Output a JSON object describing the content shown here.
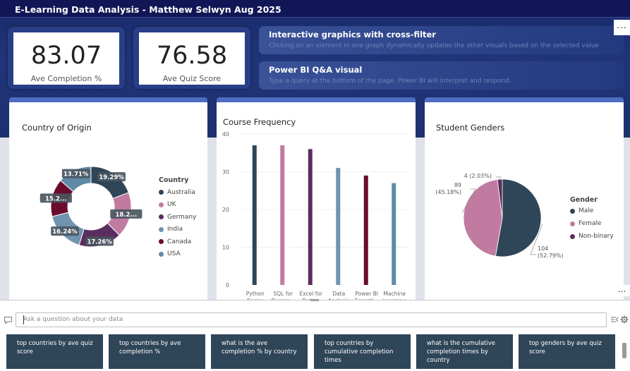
{
  "report_title": "E-Learning Data Analysis - Matthew Selwyn Aug 2025",
  "kpis": [
    {
      "value": "83.07",
      "label": "Ave Completion %"
    },
    {
      "value": "76.58",
      "label": "Ave Quiz Score"
    }
  ],
  "info_pills": [
    {
      "title": "Interactive graphics with cross-filter",
      "subtitle": "Clicking on an element in one graph dynamically updates the other visuals based on the selected value"
    },
    {
      "title": "Power BI Q&A visual",
      "subtitle": "Type a query at the  bottom of the page. Power BI will interpret and respond."
    }
  ],
  "more_options": "...",
  "colors": {
    "navy": "#2f4558",
    "pink": "#c27ba0",
    "purple": "#5b2d5e",
    "blue_grey": "#6f94b0",
    "maroon": "#6b0c2e",
    "steel": "#5f8aa8",
    "header": "#111656",
    "accent": "#4e6cc0"
  },
  "chart_data": [
    {
      "type": "pie",
      "variant": "donut",
      "title": "Country of Origin",
      "legend_title": "Country",
      "legend_position": "right",
      "categories": [
        "Australia",
        "UK",
        "Germany",
        "India",
        "Canada",
        "USA"
      ],
      "values": [
        19.29,
        18.2,
        17.26,
        16.24,
        15.2,
        13.71
      ],
      "data_labels": [
        "19.29%",
        "18.2...",
        "17.26%",
        "16.24%",
        "15.2...",
        "13.71%"
      ],
      "colors": [
        "#2f4558",
        "#c27ba0",
        "#5b2d5e",
        "#6f94b0",
        "#6b0c2e",
        "#5f8aa8"
      ]
    },
    {
      "type": "bar",
      "title": "Course Frequency",
      "categories": [
        "Python Basics",
        "SQL for Beginn...",
        "Excel for Data...",
        "Data Analysis",
        "Power BI Essenti...",
        "Machine Learning"
      ],
      "category_lines": [
        [
          "Python",
          "Basics"
        ],
        [
          "SQL for",
          "Beginn..."
        ],
        [
          "Excel for",
          "Data..."
        ],
        [
          "Data",
          "Analysis"
        ],
        [
          "Power BI",
          "Essenti..."
        ],
        [
          "Machine",
          "Learning"
        ]
      ],
      "values": [
        37,
        37,
        36,
        31,
        29,
        27
      ],
      "colors": [
        "#2f4558",
        "#c27ba0",
        "#5b2d5e",
        "#6f94b0",
        "#6b0c2e",
        "#5f8aa8"
      ],
      "yticks": [
        0,
        10,
        20,
        30,
        40
      ],
      "ylim": [
        0,
        40
      ],
      "grid": true
    },
    {
      "type": "pie",
      "title": "Student Genders",
      "legend_title": "Gender",
      "legend_position": "right",
      "categories": [
        "Male",
        "Female",
        "Non-binary"
      ],
      "values": [
        104,
        89,
        4
      ],
      "data_labels": [
        [
          "104",
          "(52.79%)"
        ],
        [
          "89",
          "(45.18%)"
        ],
        [
          "4 (2.03%)"
        ]
      ],
      "colors": [
        "#2f4558",
        "#c27ba0",
        "#5b2d5e"
      ]
    }
  ],
  "qa": {
    "placeholder": "Ask a question about your data",
    "suggestions": [
      "top countries by ave quiz score",
      "top countries by ave completion %",
      "what is the ave completion % by country",
      "top countries by cumulative completion times",
      "what is the cumulative completion times by country",
      "top genders by ave quiz score"
    ]
  }
}
